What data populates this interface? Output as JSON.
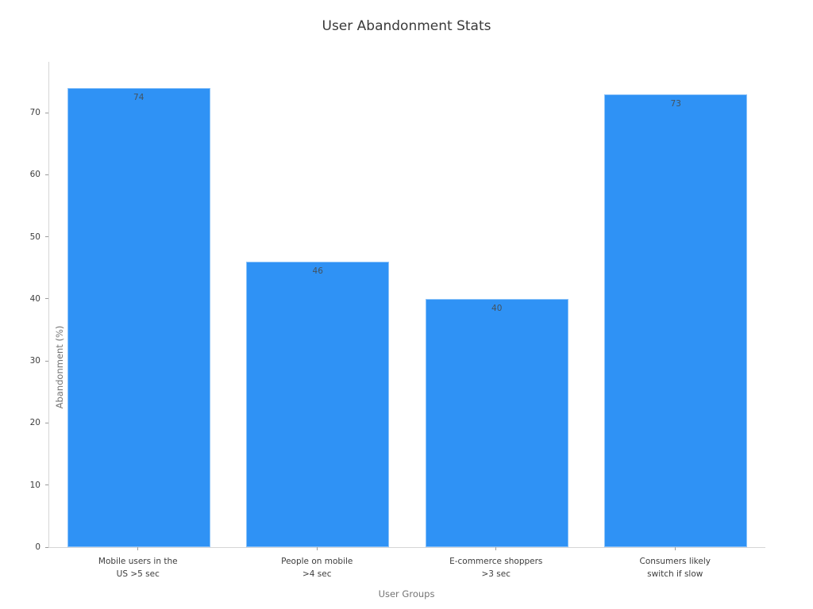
{
  "chart_data": {
    "type": "bar",
    "title": "User Abandonment Stats",
    "xlabel": "User Groups",
    "ylabel": "Abandonment (%)",
    "categories": [
      "Mobile users in the\nUS >5 sec",
      "People on mobile\n>4 sec",
      "E-commerce shoppers\n>3 sec",
      "Consumers likely\nswitch if slow"
    ],
    "values": [
      74,
      46,
      40,
      73
    ],
    "value_labels": [
      "74",
      "46",
      "40",
      "73"
    ],
    "yticks": [
      0,
      10,
      20,
      30,
      40,
      50,
      60,
      70
    ],
    "ylim": [
      0,
      78.2
    ],
    "grid": false,
    "legend": "none",
    "value_label_position": "inside-top",
    "colors": {
      "bar": "#2f92f5",
      "bar_edge": "rgba(255,255,255,0.45)",
      "title_text": "#3a3a3a",
      "tick_text": "#3d3d3d",
      "axis_title_text": "#757575",
      "value_label_text": "#44525e",
      "spine": "#d6d6d6",
      "tick_mark": "#9b9b9b",
      "background": "#ffffff"
    }
  }
}
